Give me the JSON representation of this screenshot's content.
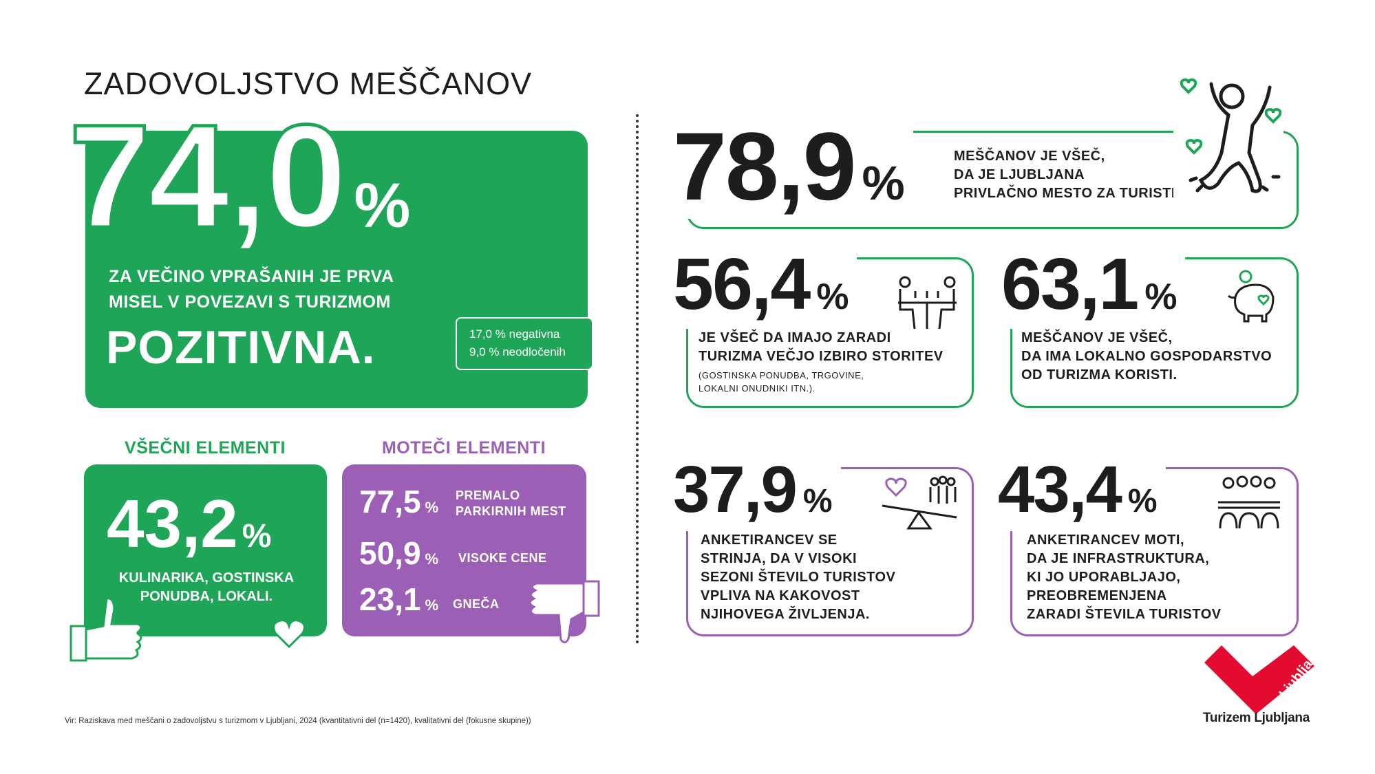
{
  "title": "ZADOVOLJSTVO MEŠČANOV",
  "main": {
    "value": "74,0",
    "percent": "%",
    "line1": "ZA VEČINO VPRAŠANIH JE PRVA",
    "line2": "MISEL V POVEZAVI S TURIZMOM",
    "highlight": "POZITIVNA.",
    "negative": "17,0 % negativna",
    "undecided": "9,0 % neodločenih"
  },
  "liked": {
    "heading": "VŠEČNI ELEMENTI",
    "value": "43,2",
    "percent": "%",
    "line1": "KULINARIKA, GOSTINSKA",
    "line2": "PONUDBA, LOKALI."
  },
  "disliked": {
    "heading": "MOTEČI ELEMENTI",
    "items": [
      {
        "value": "77,5",
        "percent": "%",
        "line1": "PREMALO",
        "line2": "PARKIRNIH MEST"
      },
      {
        "value": "50,9",
        "percent": "%",
        "line1": "VISOKE CENE"
      },
      {
        "value": "23,1",
        "percent": "%",
        "line1": "GNEČA"
      }
    ]
  },
  "cards": [
    {
      "value": "78,9",
      "percent": "%",
      "lines": [
        "MEŠČANOV JE VŠEČ,",
        "DA JE LJUBLJANA",
        "PRIVLAČNO MESTO ZA TURISTE."
      ]
    },
    {
      "value": "56,4",
      "percent": "%",
      "lines": [
        "JE VŠEČ DA IMAJO ZARADI",
        "TURIZMA VEČJO IZBIRO STORITEV"
      ],
      "note": [
        "(GOSTINSKA PONUDBA, TRGOVINE,",
        "LOKALNI ONUDNIKI ITN.)."
      ]
    },
    {
      "value": "63,1",
      "percent": "%",
      "lines": [
        "MEŠČANOV JE VŠEČ,",
        "DA IMA LOKALNO GOSPODARSTVO",
        "OD TURIZMA KORISTI."
      ]
    },
    {
      "value": "37,9",
      "percent": "%",
      "lines": [
        "ANKETIRANCEV SE",
        "STRINJA, DA V VISOKI",
        "SEZONI ŠTEVILO TURISTOV",
        "VPLIVA NA KAKOVOST",
        "NJIHOVEGA ŽIVLJENJA."
      ]
    },
    {
      "value": "43,4",
      "percent": "%",
      "lines": [
        "ANKETIRANCEV MOTI,",
        "DA JE INFRASTRUKTURA,",
        "KI JO UPORABLJAJO,",
        "PREOBREMENJENA",
        "ZARADI ŠTEVILA TURISTOV"
      ]
    }
  ],
  "logo": {
    "mark": "Ljubljana",
    "name": "Turizem Ljubljana"
  },
  "footer": "Vir: Raziskava med meščani o zadovoljstvu s turizmom v Ljubljani, 2024 (kvantitativni del (n=1420), kvalitativni del (fokusne skupine))",
  "colors": {
    "green": "#1ea557",
    "purple": "#9b5fb5",
    "red": "#e30b2f"
  }
}
